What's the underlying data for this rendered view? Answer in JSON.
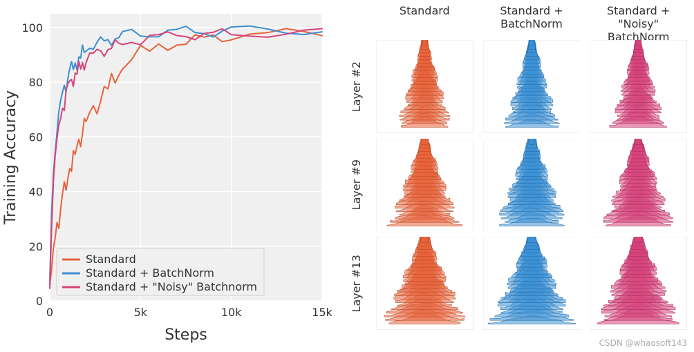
{
  "line_chart": {
    "type": "line",
    "title": null,
    "xlabel": "Steps",
    "ylabel": "Training Accuracy",
    "label_fontsize": 22,
    "tick_fontsize": 16,
    "xlim": [
      0,
      15000
    ],
    "ylim": [
      0,
      105
    ],
    "xticks": [
      0,
      5000,
      10000,
      15000
    ],
    "xtick_labels": [
      "0",
      "5k",
      "10k",
      "15k"
    ],
    "yticks": [
      0,
      20,
      40,
      60,
      80,
      100
    ],
    "ytick_labels": [
      "0",
      "20",
      "40",
      "60",
      "80",
      "100"
    ],
    "grid_color": "#ffffff",
    "background_color": "#f0f0f0",
    "series": [
      {
        "name": "Standard",
        "color": "#e8623a",
        "line_width": 2,
        "x": [
          0,
          100,
          200,
          300,
          400,
          500,
          600,
          700,
          800,
          900,
          1000,
          1100,
          1200,
          1300,
          1400,
          1500,
          1600,
          1700,
          1800,
          1900,
          2000,
          2200,
          2400,
          2600,
          2800,
          3000,
          3200,
          3400,
          3600,
          3800,
          4000,
          4500,
          5000,
          5500,
          6000,
          6500,
          7000,
          7500,
          8000,
          8500,
          9000,
          9500,
          10000,
          11000,
          12000,
          13000,
          14000,
          15000
        ],
        "y": [
          6,
          10,
          18,
          23,
          30,
          28,
          34,
          38,
          42,
          40,
          46,
          50,
          48,
          54,
          52,
          56,
          60,
          58,
          62,
          66,
          64,
          68,
          72,
          70,
          74,
          78,
          76,
          82,
          80,
          84,
          86,
          88,
          92,
          90,
          94,
          93,
          95,
          94,
          96,
          95,
          97,
          96,
          97,
          98,
          97,
          98,
          98,
          98
        ]
      },
      {
        "name": "Standard + BatchNorm",
        "color": "#3b8fd4",
        "line_width": 2,
        "x": [
          0,
          100,
          200,
          300,
          400,
          500,
          600,
          700,
          800,
          900,
          1000,
          1100,
          1200,
          1300,
          1400,
          1500,
          1600,
          1700,
          1800,
          1900,
          2000,
          2200,
          2400,
          2600,
          2800,
          3000,
          3200,
          3400,
          3600,
          3800,
          4000,
          4500,
          5000,
          5500,
          6000,
          6500,
          7000,
          7500,
          8000,
          8500,
          9000,
          9500,
          10000,
          11000,
          12000,
          13000,
          14000,
          15000
        ],
        "y": [
          6,
          32,
          48,
          56,
          62,
          68,
          72,
          76,
          80,
          78,
          82,
          84,
          86,
          84,
          88,
          86,
          90,
          88,
          92,
          90,
          92,
          94,
          93,
          94,
          95,
          94,
          96,
          95,
          97,
          96,
          97,
          98,
          97,
          98,
          98,
          99,
          98,
          99,
          98,
          99,
          98,
          99,
          99,
          99,
          99,
          99,
          99,
          99
        ]
      },
      {
        "name": "Standard + \"Noisy\" Batchnorm",
        "color": "#d6447a",
        "line_width": 2,
        "x": [
          0,
          100,
          200,
          300,
          400,
          500,
          600,
          700,
          800,
          900,
          1000,
          1100,
          1200,
          1300,
          1400,
          1500,
          1600,
          1700,
          1800,
          1900,
          2000,
          2200,
          2400,
          2600,
          2800,
          3000,
          3200,
          3400,
          3600,
          3800,
          4000,
          4500,
          5000,
          5500,
          6000,
          6500,
          7000,
          7500,
          8000,
          8500,
          9000,
          9500,
          10000,
          11000,
          12000,
          13000,
          14000,
          15000
        ],
        "y": [
          6,
          28,
          44,
          52,
          58,
          64,
          68,
          72,
          70,
          76,
          78,
          80,
          82,
          80,
          84,
          82,
          86,
          84,
          88,
          86,
          88,
          90,
          89,
          91,
          92,
          91,
          93,
          92,
          94,
          93,
          94,
          96,
          95,
          97,
          96,
          97,
          97,
          98,
          97,
          98,
          97,
          98,
          97,
          98,
          98,
          98,
          98,
          98
        ]
      }
    ],
    "legend": {
      "position": "lower left",
      "items": [
        "Standard",
        "Standard + BatchNorm",
        "Standard + \"Noisy\" Batchnorm"
      ],
      "colors": [
        "#e8623a",
        "#3b8fd4",
        "#d6447a"
      ]
    }
  },
  "dist_grid": {
    "type": "ridgeline-grid",
    "col_headers": [
      "Standard",
      "Standard +\nBatchNorm",
      "Standard +\n\"Noisy\" BatchNorm"
    ],
    "row_labels": [
      "Layer #2",
      "Layer #9",
      "Layer #13"
    ],
    "col_fill_colors": [
      "#e8623a",
      "#3b8fd4",
      "#d6447a"
    ],
    "col_stroke_colors": [
      "#b84820",
      "#1f6aa8",
      "#a82a5c"
    ],
    "background_color": "#ffffff",
    "cell_border_color": "#e8e8e8",
    "n_ridges": 24,
    "width_scale_by_row": [
      0.6,
      0.78,
      0.92
    ],
    "ridge_opacity": 0.55
  },
  "watermark": "CSDN @whaosoft143"
}
